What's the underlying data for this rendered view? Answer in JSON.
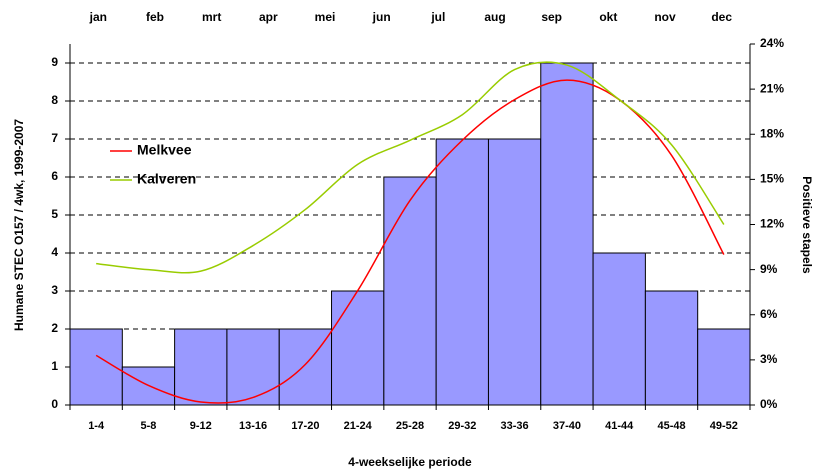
{
  "chart_data": {
    "type": "bar",
    "months": [
      "jan",
      "feb",
      "mrt",
      "apr",
      "mei",
      "jun",
      "jul",
      "aug",
      "sep",
      "okt",
      "nov",
      "dec"
    ],
    "categories": [
      "1-4",
      "5-8",
      "9-12",
      "13-16",
      "17-20",
      "21-24",
      "25-28",
      "29-32",
      "33-36",
      "37-40",
      "41-44",
      "45-48",
      "49-52"
    ],
    "values": [
      2,
      1,
      2,
      2,
      2,
      3,
      6,
      7,
      7,
      9,
      4,
      3,
      2
    ],
    "color": "#9999ff",
    "series": [
      {
        "name": "Melkvee",
        "color": "#ff0000",
        "axis": "y2",
        "values": [
          3.3,
          1.3,
          0.2,
          0.5,
          2.7,
          7.6,
          13.6,
          17.6,
          20.3,
          21.6,
          20.3,
          16.6,
          10.0
        ]
      },
      {
        "name": "Kalveren",
        "color": "#99cc00",
        "axis": "y2",
        "values": [
          9.4,
          9.0,
          8.9,
          10.6,
          13.0,
          16.0,
          17.6,
          19.3,
          22.3,
          22.6,
          20.3,
          17.3,
          12.0
        ]
      }
    ],
    "ylabel": "Humane STEC O157 / 4wk, 1999-2007",
    "y2label": "Positieve stapels",
    "xlabel": "4-weekselijke periode",
    "ylim": [
      0,
      9.5
    ],
    "yticks": [
      0,
      1,
      2,
      3,
      4,
      5,
      6,
      7,
      8,
      9
    ],
    "y2lim": [
      0,
      24
    ],
    "y2ticks": [
      {
        "value": 0,
        "label": "0%"
      },
      {
        "value": 3,
        "label": "3%"
      },
      {
        "value": 6,
        "label": "6%"
      },
      {
        "value": 9,
        "label": "9%"
      },
      {
        "value": 12,
        "label": "12%"
      },
      {
        "value": 15,
        "label": "15%"
      },
      {
        "value": 18,
        "label": "18%"
      },
      {
        "value": 21,
        "label": "21%"
      },
      {
        "value": 24,
        "label": "24%"
      }
    ],
    "grid": true
  }
}
